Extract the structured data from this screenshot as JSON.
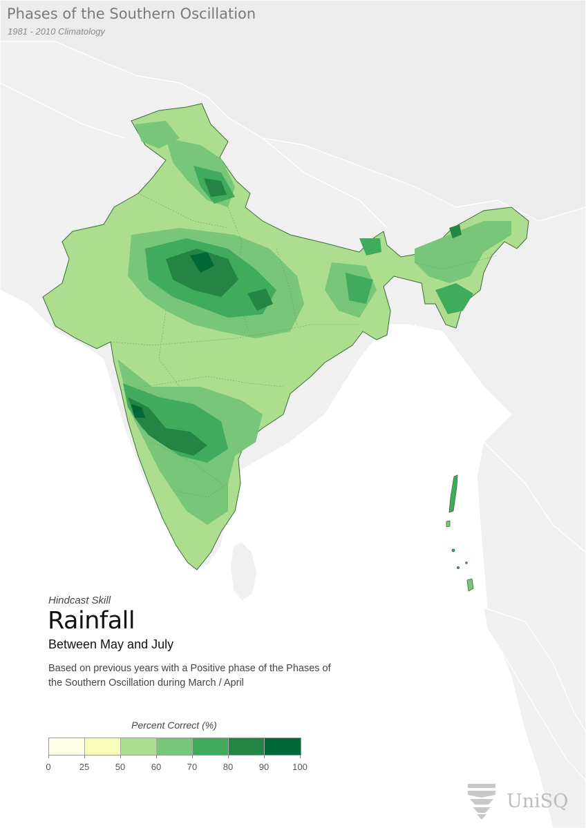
{
  "header": {
    "title": "Phases of the Southern Oscillation",
    "subtitle": "1981 - 2010 Climatology"
  },
  "info": {
    "eyebrow": "Hindcast Skill",
    "headline": "Rainfall",
    "subhead": "Between May and July",
    "description": "Based on previous years with a Positive phase of the Phases of the Southern Oscillation during March / April"
  },
  "legend": {
    "title": "Percent Correct (%)",
    "ticks": [
      "0",
      "25",
      "50",
      "60",
      "70",
      "80",
      "90",
      "100"
    ],
    "colors": [
      "#ffffe5",
      "#f7fcb9",
      "#addd8e",
      "#78c679",
      "#41ab5d",
      "#238443",
      "#006837"
    ]
  },
  "map": {
    "background_color": "#ffffff",
    "land_color": "#f0f0f0",
    "region": "India"
  },
  "brand": {
    "logo_text": "UniSQ"
  }
}
